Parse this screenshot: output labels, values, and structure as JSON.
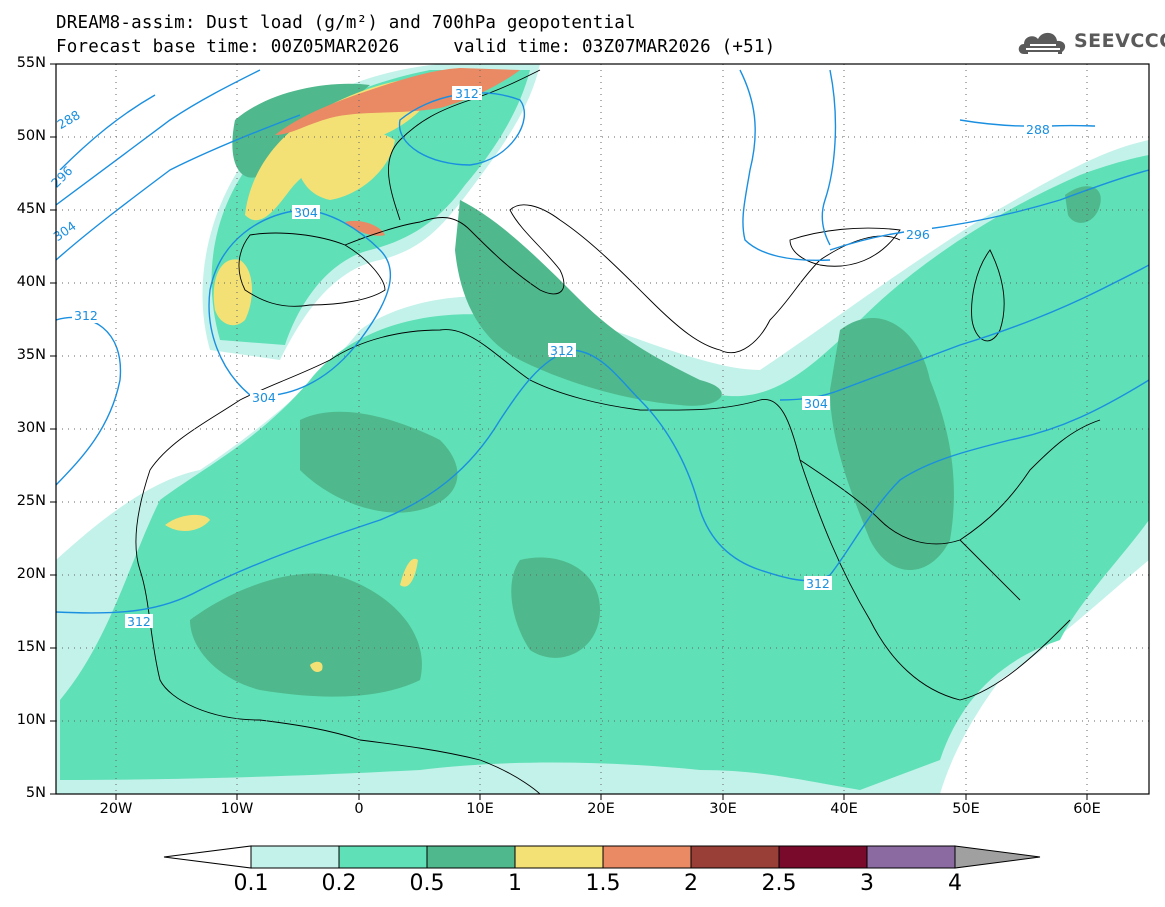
{
  "title": {
    "line1": "DREAM8-assim: Dust load (g/m²) and 700hPa geopotential",
    "line2": "Forecast base time: 00Z05MAR2026     valid time: 03Z07MAR2026 (+51)"
  },
  "logo": {
    "text": "SEEVCCC",
    "icon": "cloud-icon"
  },
  "axes": {
    "lat_labels": [
      "55N",
      "50N",
      "45N",
      "40N",
      "35N",
      "30N",
      "25N",
      "20N",
      "15N",
      "10N",
      "5N"
    ],
    "lon_labels": [
      "20W",
      "10W",
      "0",
      "10E",
      "20E",
      "30E",
      "40E",
      "50E",
      "60E"
    ],
    "grid": "dotted"
  },
  "contours": {
    "color": "#1a8fe0",
    "labels": [
      "288",
      "296",
      "304",
      "312",
      "312",
      "304",
      "304",
      "312",
      "312",
      "312",
      "296",
      "288"
    ]
  },
  "colorbar": {
    "levels": [
      "0.1",
      "0.2",
      "0.5",
      "1",
      "1.5",
      "2",
      "2.5",
      "3",
      "4"
    ],
    "colors": [
      "#c3f2ea",
      "#5fe0b6",
      "#4fb88c",
      "#f3e176",
      "#e98a64",
      "#9a3f38",
      "#7a0a2c",
      "#8b6aa1"
    ],
    "under_color": "#ffffff",
    "over_color": "#a0a0a0"
  }
}
